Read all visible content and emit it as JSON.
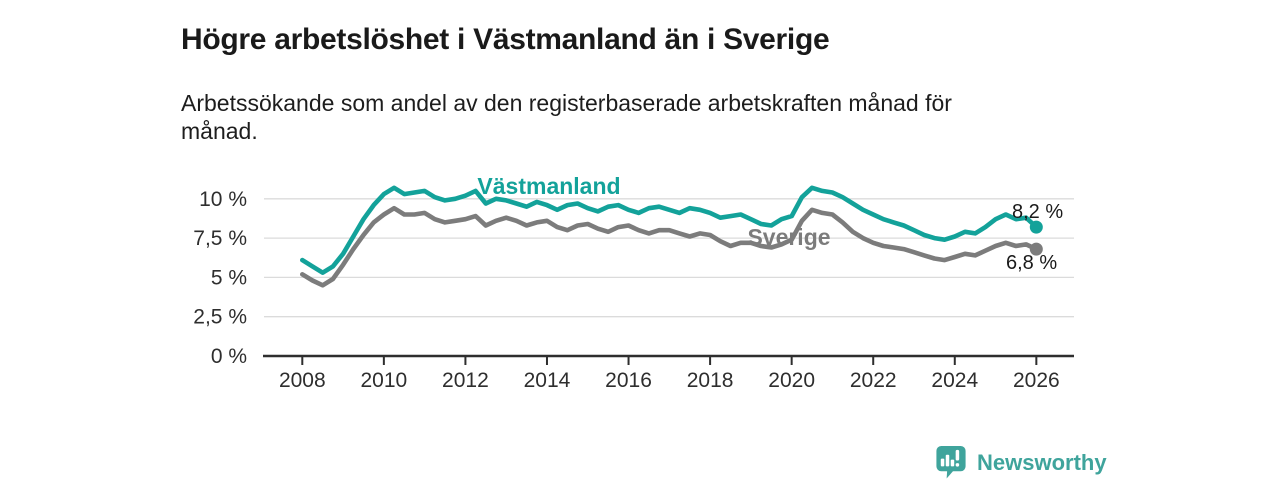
{
  "chart_data": {
    "type": "line",
    "title": "Högre arbetslöshet i Västmanland än i Sverige",
    "subtitle": "Arbetssökande som andel av den registerbaserade arbetskraften månad för\nmånad.",
    "grid": "horizontal-only",
    "legend": "inline-series-labels",
    "x_unit": "decimal_year",
    "xlim": [
      2008,
      2026.3
    ],
    "ylim": [
      0,
      12
    ],
    "x_tick_labels": [
      "2008",
      "2010",
      "2012",
      "2014",
      "2016",
      "2018",
      "2020",
      "2022",
      "2024",
      "2026"
    ],
    "x_tick_values": [
      2008,
      2010,
      2012,
      2014,
      2016,
      2018,
      2020,
      2022,
      2024,
      2026
    ],
    "y_ticks": [
      {
        "value": 0,
        "label": "0 %"
      },
      {
        "value": 2.5,
        "label": "2,5 %"
      },
      {
        "value": 5,
        "label": "5 %"
      },
      {
        "value": 7.5,
        "label": "7,5 %"
      },
      {
        "value": 10,
        "label": "10 %"
      }
    ],
    "x": [
      2008,
      2008.25,
      2008.5,
      2008.75,
      2009,
      2009.25,
      2009.5,
      2009.75,
      2010,
      2010.25,
      2010.5,
      2010.75,
      2011,
      2011.25,
      2011.5,
      2011.75,
      2012,
      2012.25,
      2012.5,
      2012.75,
      2013,
      2013.25,
      2013.5,
      2013.75,
      2014,
      2014.25,
      2014.5,
      2014.75,
      2015,
      2015.25,
      2015.5,
      2015.75,
      2016,
      2016.25,
      2016.5,
      2016.75,
      2017,
      2017.25,
      2017.5,
      2017.75,
      2018,
      2018.25,
      2018.5,
      2018.75,
      2019,
      2019.25,
      2019.5,
      2019.75,
      2020,
      2020.25,
      2020.5,
      2020.75,
      2021,
      2021.25,
      2021.5,
      2021.75,
      2022,
      2022.25,
      2022.5,
      2022.75,
      2023,
      2023.25,
      2023.5,
      2023.75,
      2024,
      2024.25,
      2024.5,
      2024.75,
      2025,
      2025.25,
      2025.5,
      2025.75,
      2026
    ],
    "series": [
      {
        "name": "Västmanland",
        "color": "#13A29A",
        "end_label": "8,2 %",
        "end_value": 8.2,
        "values": [
          6.1,
          5.7,
          5.3,
          5.7,
          6.5,
          7.6,
          8.7,
          9.6,
          10.3,
          10.7,
          10.3,
          10.4,
          10.5,
          10.1,
          9.9,
          10.0,
          10.2,
          10.5,
          9.7,
          10.0,
          9.9,
          9.7,
          9.5,
          9.8,
          9.6,
          9.3,
          9.6,
          9.7,
          9.4,
          9.2,
          9.5,
          9.6,
          9.3,
          9.1,
          9.4,
          9.5,
          9.3,
          9.1,
          9.4,
          9.3,
          9.1,
          8.8,
          8.9,
          9.0,
          8.7,
          8.4,
          8.3,
          8.7,
          8.9,
          10.1,
          10.7,
          10.5,
          10.4,
          10.1,
          9.7,
          9.3,
          9.0,
          8.7,
          8.5,
          8.3,
          8.0,
          7.7,
          7.5,
          7.4,
          7.6,
          7.9,
          7.8,
          8.2,
          8.7,
          9.0,
          8.7,
          8.8,
          8.2
        ]
      },
      {
        "name": "Sverige",
        "color": "#7C7C7C",
        "end_label": "6,8 %",
        "end_value": 6.8,
        "values": [
          5.2,
          4.8,
          4.5,
          4.9,
          5.8,
          6.8,
          7.7,
          8.5,
          9.0,
          9.4,
          9.0,
          9.0,
          9.1,
          8.7,
          8.5,
          8.6,
          8.7,
          8.9,
          8.3,
          8.6,
          8.8,
          8.6,
          8.3,
          8.5,
          8.6,
          8.2,
          8.0,
          8.3,
          8.4,
          8.1,
          7.9,
          8.2,
          8.3,
          8.0,
          7.8,
          8.0,
          8.0,
          7.8,
          7.6,
          7.8,
          7.7,
          7.3,
          7.0,
          7.2,
          7.2,
          7.0,
          6.9,
          7.1,
          7.4,
          8.6,
          9.3,
          9.1,
          9.0,
          8.5,
          7.9,
          7.5,
          7.2,
          7.0,
          6.9,
          6.8,
          6.6,
          6.4,
          6.2,
          6.1,
          6.3,
          6.5,
          6.4,
          6.7,
          7.0,
          7.2,
          7.0,
          7.1,
          6.8
        ]
      }
    ],
    "colors": {
      "axis": "#2E2E2E",
      "gridline": "#DBDBDB",
      "tick_label": "#2E2E2E",
      "end_label_text": "#1A1A1A"
    }
  },
  "footer": {
    "brand": "Newsworthy",
    "brand_color": "#3FA49C",
    "icon": "newsworthy-logo-icon"
  }
}
